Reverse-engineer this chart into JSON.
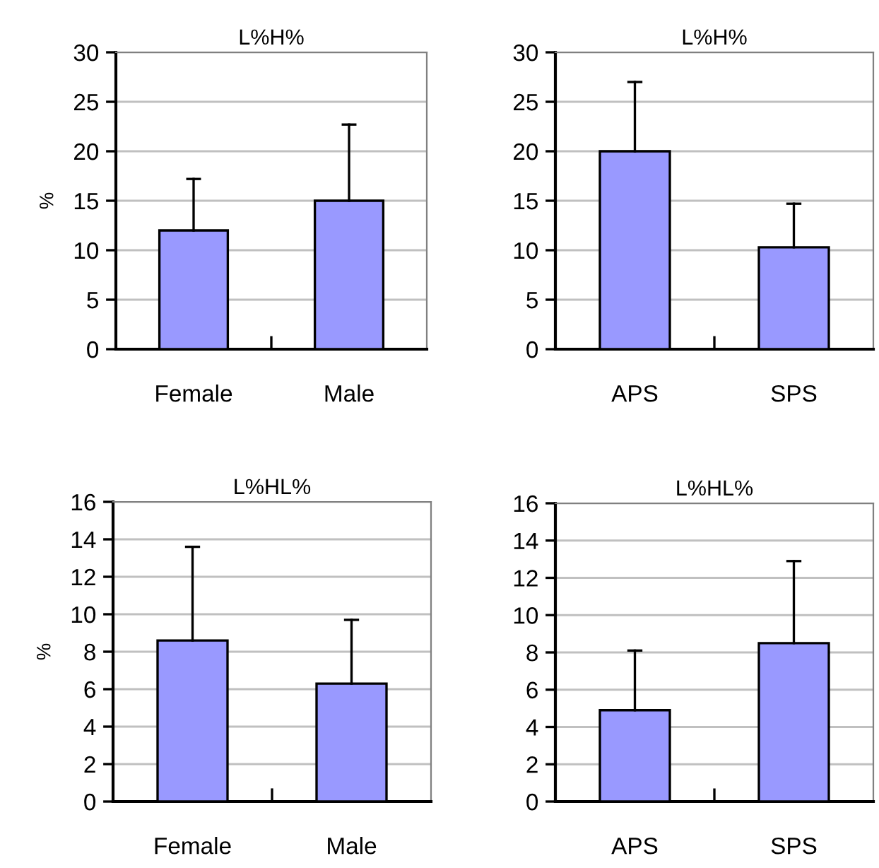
{
  "chart_data": [
    {
      "type": "bar",
      "title": "L%H%",
      "ylabel": "%",
      "categories": [
        "Female",
        "Male"
      ],
      "values": [
        12,
        15
      ],
      "errors": [
        [
          12,
          17.2
        ],
        [
          15,
          22.7
        ]
      ],
      "color": "#9999ff",
      "ylim": [
        0,
        30
      ],
      "yticks": [
        0,
        5,
        10,
        15,
        20,
        25,
        30
      ],
      "grid": "y"
    },
    {
      "type": "bar",
      "title": "L%H%",
      "categories": [
        "APS",
        "SPS"
      ],
      "values": [
        20,
        10.3
      ],
      "errors": [
        [
          20,
          27
        ],
        [
          10.3,
          14.7
        ]
      ],
      "color": "#9999ff",
      "ylim": [
        0,
        30
      ],
      "yticks": [
        0,
        5,
        10,
        15,
        20,
        25,
        30
      ],
      "grid": "y"
    },
    {
      "type": "bar",
      "title": "L%HL%",
      "ylabel": "%",
      "categories": [
        "Female",
        "Male"
      ],
      "values": [
        8.6,
        6.3
      ],
      "errors": [
        [
          8.6,
          13.6
        ],
        [
          6.3,
          9.7
        ]
      ],
      "color": "#9999ff",
      "ylim": [
        0,
        16
      ],
      "yticks": [
        0,
        2,
        4,
        6,
        8,
        10,
        12,
        14,
        16
      ],
      "grid": "y"
    },
    {
      "type": "bar",
      "title": "L%HL%",
      "categories": [
        "APS",
        "SPS"
      ],
      "values": [
        4.9,
        8.5
      ],
      "errors": [
        [
          4.9,
          8.1
        ],
        [
          8.5,
          12.9
        ]
      ],
      "color": "#9999ff",
      "ylim": [
        0,
        16
      ],
      "yticks": [
        0,
        2,
        4,
        6,
        8,
        10,
        12,
        14,
        16
      ],
      "grid": "y"
    }
  ]
}
